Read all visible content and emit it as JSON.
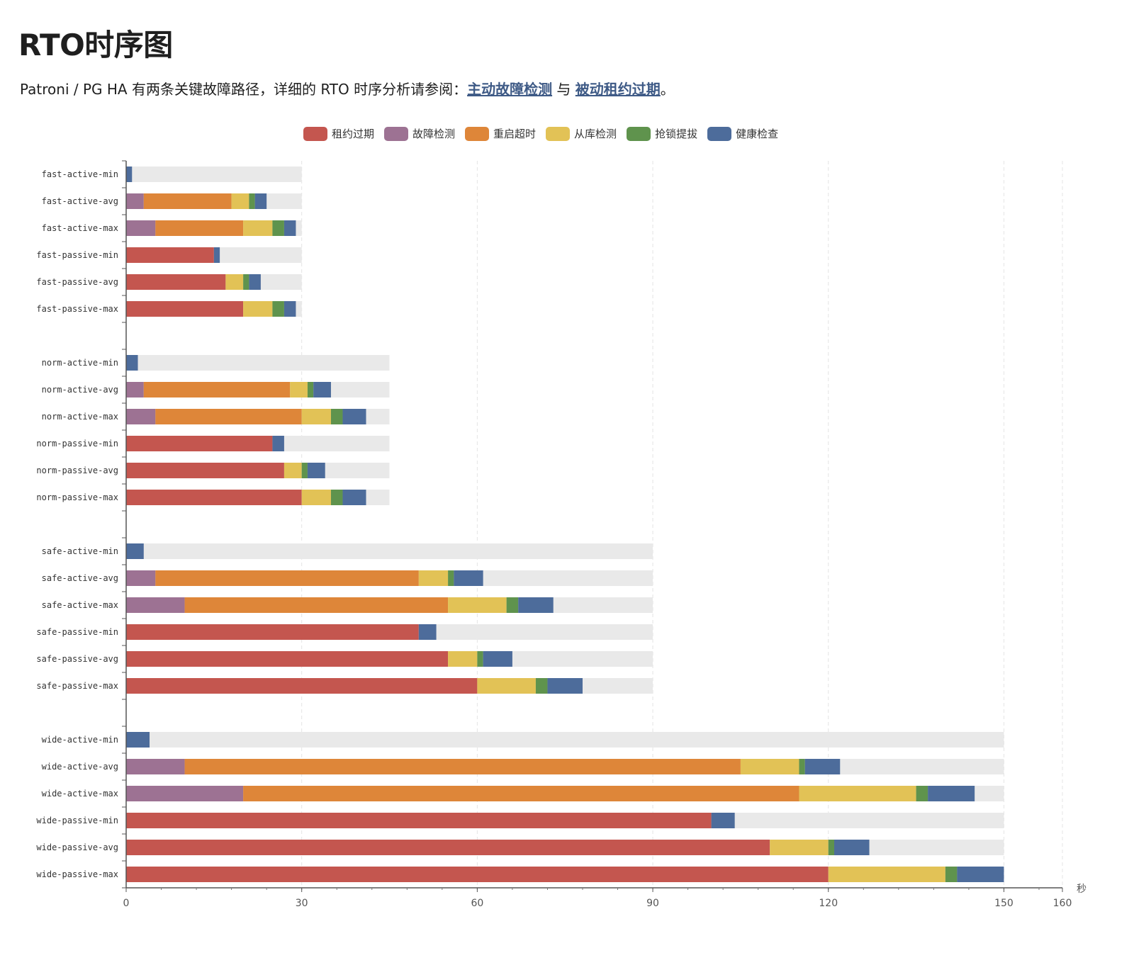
{
  "page": {
    "title": "RTO时序图",
    "intro_prefix": "Patroni / PG HA 有两条关键故障路径，详细的 RTO 时序分析请参阅：",
    "link1": "主动故障检测",
    "between": " 与 ",
    "link2": "被动租约过期",
    "suffix": "。"
  },
  "chart_data": {
    "type": "bar",
    "orientation": "horizontal",
    "stacked": true,
    "legend_position": "top",
    "x_unit": "秒",
    "xlim": [
      0,
      160
    ],
    "x_ticks": [
      0,
      30,
      60,
      90,
      120,
      150,
      160
    ],
    "grid": "vertical dashed",
    "categories": [
      "fast-active-min",
      "fast-active-avg",
      "fast-active-max",
      "fast-passive-min",
      "fast-passive-avg",
      "fast-passive-max",
      "",
      "norm-active-min",
      "norm-active-avg",
      "norm-active-max",
      "norm-passive-min",
      "norm-passive-avg",
      "norm-passive-max",
      "",
      "safe-active-min",
      "safe-active-avg",
      "safe-active-max",
      "safe-passive-min",
      "safe-passive-avg",
      "safe-passive-max",
      "",
      "wide-active-min",
      "wide-active-avg",
      "wide-active-max",
      "wide-passive-min",
      "wide-passive-avg",
      "wide-passive-max"
    ],
    "background_totals": [
      30,
      30,
      30,
      30,
      30,
      30,
      null,
      45,
      45,
      45,
      45,
      45,
      45,
      null,
      90,
      90,
      90,
      90,
      90,
      90,
      null,
      150,
      150,
      150,
      150,
      150,
      150
    ],
    "background_color": "#e9e9e9",
    "series": [
      {
        "name": "租约过期",
        "color": "#c4564f",
        "values": [
          0,
          0,
          0,
          15,
          17,
          20,
          null,
          0,
          0,
          0,
          25,
          27,
          30,
          null,
          0,
          0,
          0,
          50,
          55,
          60,
          null,
          0,
          0,
          0,
          100,
          110,
          120
        ]
      },
      {
        "name": "故障检测",
        "color": "#9d7293",
        "values": [
          0,
          3,
          5,
          0,
          0,
          0,
          null,
          0,
          3,
          5,
          0,
          0,
          0,
          null,
          0,
          5,
          10,
          0,
          0,
          0,
          null,
          0,
          10,
          20,
          0,
          0,
          0
        ]
      },
      {
        "name": "重启超时",
        "color": "#de8639",
        "values": [
          0,
          15,
          15,
          0,
          0,
          0,
          null,
          0,
          25,
          25,
          0,
          0,
          0,
          null,
          0,
          45,
          45,
          0,
          0,
          0,
          null,
          0,
          95,
          95,
          0,
          0,
          0
        ]
      },
      {
        "name": "从库检测",
        "color": "#e2c256",
        "values": [
          0,
          3,
          5,
          0,
          3,
          5,
          null,
          0,
          3,
          5,
          0,
          3,
          5,
          null,
          0,
          5,
          10,
          0,
          5,
          10,
          null,
          0,
          10,
          20,
          0,
          10,
          20
        ]
      },
      {
        "name": "抢锁提拔",
        "color": "#5f934d",
        "values": [
          0,
          1,
          2,
          0,
          1,
          2,
          null,
          0,
          1,
          2,
          0,
          1,
          2,
          null,
          0,
          1,
          2,
          0,
          1,
          2,
          null,
          0,
          1,
          2,
          0,
          1,
          2
        ]
      },
      {
        "name": "健康检查",
        "color": "#4d6c9b",
        "values": [
          1,
          2,
          2,
          1,
          2,
          2,
          null,
          2,
          3,
          4,
          2,
          3,
          4,
          null,
          3,
          5,
          6,
          3,
          5,
          6,
          null,
          4,
          6,
          8,
          4,
          6,
          8
        ]
      }
    ]
  }
}
